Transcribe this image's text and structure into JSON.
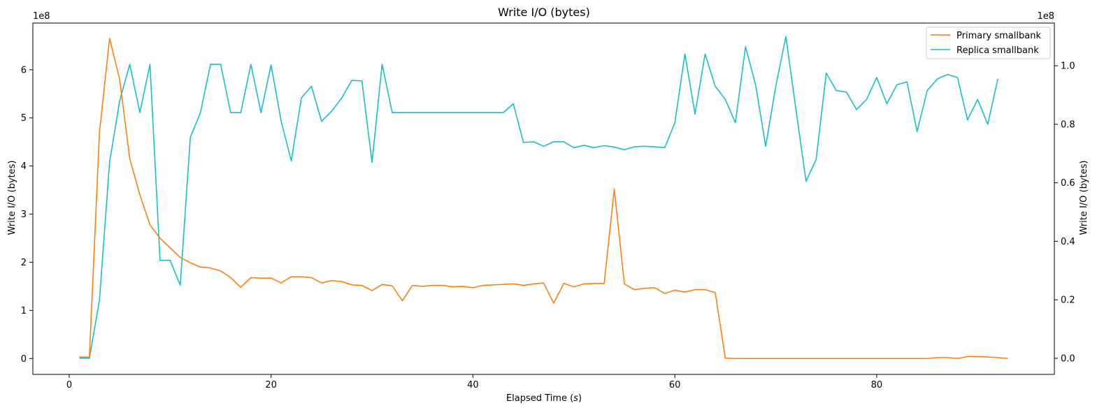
{
  "chart_data": {
    "type": "line",
    "title": "Write I/O (bytes)",
    "xlabel": "Elapsed Time (s)",
    "xlabel_parts": {
      "prefix": "Elapsed Time (",
      "var": "s",
      "suffix": ")"
    },
    "ylabel_left": "Write I/O (bytes)",
    "ylabel_right": "Write I/O (bytes)",
    "offset_left": "1e8",
    "offset_right": "1e8",
    "xlim": [
      -3.6,
      97.6
    ],
    "ylim_left": [
      -0.33,
      6.97
    ],
    "ylim_right": [
      -0.055,
      1.146
    ],
    "xticks": [
      0,
      20,
      40,
      60,
      80
    ],
    "yticks_left": [
      0,
      1,
      2,
      3,
      4,
      5,
      6
    ],
    "yticks_right": [
      0.0,
      0.2,
      0.4,
      0.6,
      0.8,
      1.0
    ],
    "legend": {
      "position": "top-right",
      "entries": [
        "Primary smallbank",
        "Replica smallbank"
      ]
    },
    "series": [
      {
        "name": "Primary smallbank",
        "axis": "left",
        "color": "#ff7f0e",
        "x": [
          1,
          2,
          3,
          4,
          5,
          6,
          7,
          8,
          9,
          10,
          11,
          12,
          13,
          14,
          15,
          16,
          17,
          18,
          19,
          20,
          21,
          22,
          23,
          24,
          25,
          26,
          27,
          28,
          29,
          30,
          31,
          32,
          33,
          34,
          35,
          36,
          37,
          38,
          39,
          40,
          41,
          42,
          43,
          44,
          45,
          46,
          47,
          48,
          49,
          50,
          51,
          52,
          53,
          54,
          55,
          56,
          57,
          58,
          59,
          60,
          61,
          62,
          63,
          64,
          65,
          66,
          67,
          68,
          69,
          70,
          71,
          72,
          73,
          74,
          75,
          76,
          77,
          78,
          79,
          80,
          81,
          82,
          83,
          84,
          85,
          86,
          87,
          88,
          89,
          90,
          91,
          92,
          93
        ],
        "y": [
          0.03,
          0.03,
          4.7,
          6.65,
          5.8,
          4.15,
          3.4,
          2.78,
          2.5,
          2.3,
          2.1,
          1.99,
          1.9,
          1.88,
          1.82,
          1.68,
          1.48,
          1.68,
          1.67,
          1.67,
          1.57,
          1.7,
          1.7,
          1.68,
          1.57,
          1.62,
          1.6,
          1.53,
          1.52,
          1.41,
          1.54,
          1.51,
          1.2,
          1.52,
          1.5,
          1.52,
          1.52,
          1.49,
          1.5,
          1.47,
          1.52,
          1.53,
          1.54,
          1.55,
          1.52,
          1.55,
          1.57,
          1.15,
          1.56,
          1.49,
          1.55,
          1.56,
          1.56,
          3.52,
          1.55,
          1.43,
          1.46,
          1.47,
          1.35,
          1.42,
          1.38,
          1.43,
          1.43,
          1.37,
          0.01,
          0.0,
          0.0,
          0.0,
          0.0,
          0.0,
          0.0,
          0.0,
          0.0,
          0.0,
          0.0,
          0.0,
          0.0,
          0.0,
          0.0,
          0.0,
          0.0,
          0.0,
          0.0,
          0.0,
          0.0,
          0.02,
          0.02,
          0.0,
          0.04,
          0.04,
          0.03,
          0.02,
          0.0
        ]
      },
      {
        "name": "Replica smallbank",
        "axis": "right",
        "color": "#17becf",
        "x": [
          1,
          2,
          3,
          4,
          5,
          6,
          7,
          8,
          9,
          10,
          11,
          12,
          13,
          14,
          15,
          16,
          17,
          18,
          19,
          20,
          21,
          22,
          23,
          24,
          25,
          26,
          27,
          28,
          29,
          30,
          31,
          32,
          33,
          34,
          35,
          36,
          37,
          38,
          39,
          40,
          41,
          42,
          43,
          44,
          45,
          46,
          47,
          48,
          49,
          50,
          51,
          52,
          53,
          54,
          55,
          56,
          57,
          58,
          59,
          60,
          61,
          62,
          63,
          64,
          65,
          66,
          67,
          68,
          69,
          70,
          71,
          72,
          73,
          74,
          75,
          76,
          77,
          78,
          79,
          80,
          81,
          82,
          83,
          84,
          85,
          86,
          87,
          88,
          89,
          90,
          91,
          92
        ],
        "y": [
          0.0,
          0.0,
          0.2,
          0.67,
          0.88,
          1.005,
          0.84,
          1.005,
          0.335,
          0.335,
          0.25,
          0.755,
          0.84,
          1.005,
          1.005,
          0.84,
          0.84,
          1.005,
          0.84,
          1.003,
          0.81,
          0.675,
          0.89,
          0.93,
          0.81,
          0.845,
          0.89,
          0.95,
          0.948,
          0.67,
          1.005,
          0.84,
          0.84,
          0.84,
          0.84,
          0.84,
          0.84,
          0.84,
          0.84,
          0.84,
          0.84,
          0.84,
          0.84,
          0.87,
          0.738,
          0.74,
          0.725,
          0.74,
          0.74,
          0.72,
          0.728,
          0.72,
          0.727,
          0.722,
          0.713,
          0.723,
          0.725,
          0.723,
          0.72,
          0.805,
          1.04,
          0.835,
          1.04,
          0.93,
          0.885,
          0.805,
          1.065,
          0.935,
          0.725,
          0.93,
          1.1,
          0.85,
          0.605,
          0.68,
          0.975,
          0.915,
          0.91,
          0.85,
          0.885,
          0.96,
          0.87,
          0.935,
          0.945,
          0.775,
          0.915,
          0.955,
          0.97,
          0.96,
          0.815,
          0.885,
          0.8,
          0.955
        ]
      }
    ]
  }
}
